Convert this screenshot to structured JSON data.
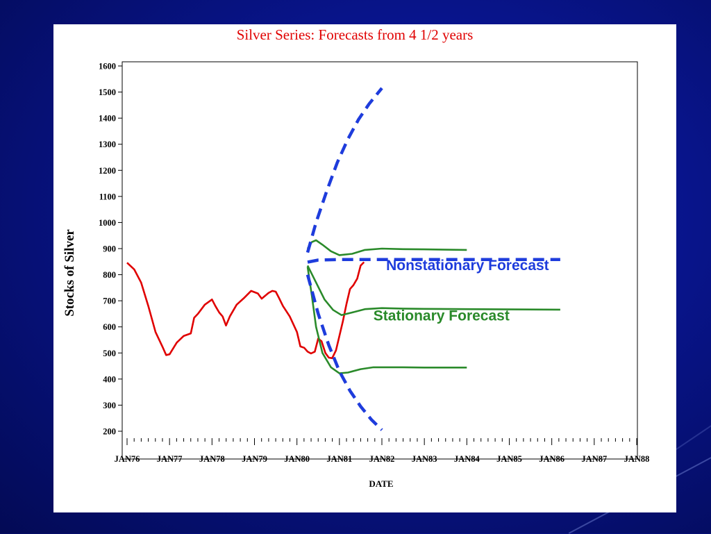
{
  "chart_data": {
    "type": "line",
    "title": "Silver Series:  Forecasts from 4 1/2 years",
    "xlabel": "DATE",
    "ylabel": "Stocks of Silver",
    "ylim": [
      200,
      1600
    ],
    "xlim": [
      1976.0,
      1988.0
    ],
    "yticks": [
      200,
      300,
      400,
      500,
      600,
      700,
      800,
      900,
      1000,
      1100,
      1200,
      1300,
      1400,
      1500,
      1600
    ],
    "xtick_labels": [
      "JAN76",
      "JAN77",
      "JAN78",
      "JAN79",
      "JAN80",
      "JAN81",
      "JAN82",
      "JAN83",
      "JAN84",
      "JAN85",
      "JAN86",
      "JAN87",
      "JAN88"
    ],
    "grid": false,
    "annotations": [
      {
        "text": "Nonstationary Forecast",
        "color": "#1e3cdc",
        "anchor": {
          "x": 1982.1,
          "y": 818
        }
      },
      {
        "text": "Stationary Forecast",
        "color": "#2a8a2a",
        "anchor": {
          "x": 1981.8,
          "y": 624
        }
      }
    ],
    "series": [
      {
        "role": "observed",
        "color": "#e00000",
        "style": "solid",
        "points": [
          [
            1976.0,
            846
          ],
          [
            1976.17,
            820
          ],
          [
            1976.33,
            770
          ],
          [
            1976.5,
            680
          ],
          [
            1976.67,
            580
          ],
          [
            1976.83,
            525
          ],
          [
            1976.92,
            492
          ],
          [
            1977.0,
            495
          ],
          [
            1977.17,
            540
          ],
          [
            1977.33,
            565
          ],
          [
            1977.5,
            575
          ],
          [
            1977.58,
            635
          ],
          [
            1977.67,
            650
          ],
          [
            1977.83,
            685
          ],
          [
            1978.0,
            705
          ],
          [
            1978.08,
            680
          ],
          [
            1978.17,
            655
          ],
          [
            1978.25,
            640
          ],
          [
            1978.33,
            605
          ],
          [
            1978.42,
            640
          ],
          [
            1978.58,
            685
          ],
          [
            1978.75,
            710
          ],
          [
            1978.92,
            738
          ],
          [
            1979.08,
            728
          ],
          [
            1979.17,
            708
          ],
          [
            1979.33,
            730
          ],
          [
            1979.42,
            738
          ],
          [
            1979.5,
            735
          ],
          [
            1979.58,
            710
          ],
          [
            1979.67,
            680
          ],
          [
            1979.83,
            640
          ],
          [
            1980.0,
            580
          ],
          [
            1980.08,
            525
          ],
          [
            1980.17,
            520
          ],
          [
            1980.25,
            505
          ],
          [
            1980.33,
            498
          ],
          [
            1980.42,
            505
          ],
          [
            1980.5,
            555
          ],
          [
            1980.58,
            545
          ],
          [
            1980.67,
            500
          ],
          [
            1980.75,
            482
          ],
          [
            1980.83,
            480
          ],
          [
            1980.92,
            510
          ],
          [
            1981.08,
            620
          ],
          [
            1981.17,
            690
          ],
          [
            1981.25,
            745
          ],
          [
            1981.33,
            760
          ],
          [
            1981.42,
            785
          ],
          [
            1981.5,
            835
          ],
          [
            1981.58,
            848
          ]
        ]
      },
      {
        "role": "stationary-upper",
        "color": "#2a8a2a",
        "style": "solid",
        "points": [
          [
            1980.25,
            900
          ],
          [
            1980.35,
            925
          ],
          [
            1980.45,
            932
          ],
          [
            1980.6,
            915
          ],
          [
            1980.8,
            890
          ],
          [
            1981.0,
            875
          ],
          [
            1981.3,
            880
          ],
          [
            1981.6,
            895
          ],
          [
            1982.0,
            900
          ],
          [
            1982.5,
            898
          ],
          [
            1983.0,
            897
          ],
          [
            1984.0,
            895
          ]
        ]
      },
      {
        "role": "stationary-mid",
        "color": "#2a8a2a",
        "style": "solid",
        "points": [
          [
            1980.25,
            835
          ],
          [
            1980.45,
            770
          ],
          [
            1980.65,
            705
          ],
          [
            1980.85,
            665
          ],
          [
            1981.05,
            645
          ],
          [
            1981.3,
            655
          ],
          [
            1981.6,
            668
          ],
          [
            1982.0,
            672
          ],
          [
            1982.5,
            670
          ],
          [
            1983.0,
            669
          ],
          [
            1984.0,
            668
          ],
          [
            1986.2,
            666
          ]
        ]
      },
      {
        "role": "stationary-lower",
        "color": "#2a8a2a",
        "style": "solid",
        "points": [
          [
            1980.25,
            830
          ],
          [
            1980.35,
            720
          ],
          [
            1980.45,
            600
          ],
          [
            1980.6,
            500
          ],
          [
            1980.8,
            445
          ],
          [
            1981.0,
            422
          ],
          [
            1981.2,
            425
          ],
          [
            1981.5,
            438
          ],
          [
            1981.8,
            445
          ],
          [
            1982.5,
            445
          ],
          [
            1983.0,
            444
          ],
          [
            1984.0,
            444
          ]
        ]
      },
      {
        "role": "nonstationary-upper",
        "color": "#1e3cdc",
        "style": "dashed",
        "points": [
          [
            1980.25,
            885
          ],
          [
            1980.45,
            1000
          ],
          [
            1980.7,
            1120
          ],
          [
            1980.95,
            1230
          ],
          [
            1981.2,
            1320
          ],
          [
            1981.45,
            1395
          ],
          [
            1981.7,
            1455
          ],
          [
            1982.0,
            1515
          ]
        ]
      },
      {
        "role": "nonstationary-mid",
        "color": "#1e3cdc",
        "style": "dashed",
        "points": [
          [
            1980.25,
            848
          ],
          [
            1980.5,
            856
          ],
          [
            1981.0,
            858
          ],
          [
            1982.0,
            858
          ],
          [
            1983.0,
            858
          ],
          [
            1984.0,
            858
          ],
          [
            1985.0,
            858
          ],
          [
            1986.2,
            858
          ]
        ]
      },
      {
        "role": "nonstationary-lower",
        "color": "#1e3cdc",
        "style": "dashed",
        "points": [
          [
            1980.25,
            800
          ],
          [
            1980.5,
            650
          ],
          [
            1980.75,
            530
          ],
          [
            1981.0,
            430
          ],
          [
            1981.25,
            355
          ],
          [
            1981.5,
            295
          ],
          [
            1981.75,
            245
          ],
          [
            1982.0,
            205
          ]
        ]
      }
    ]
  }
}
